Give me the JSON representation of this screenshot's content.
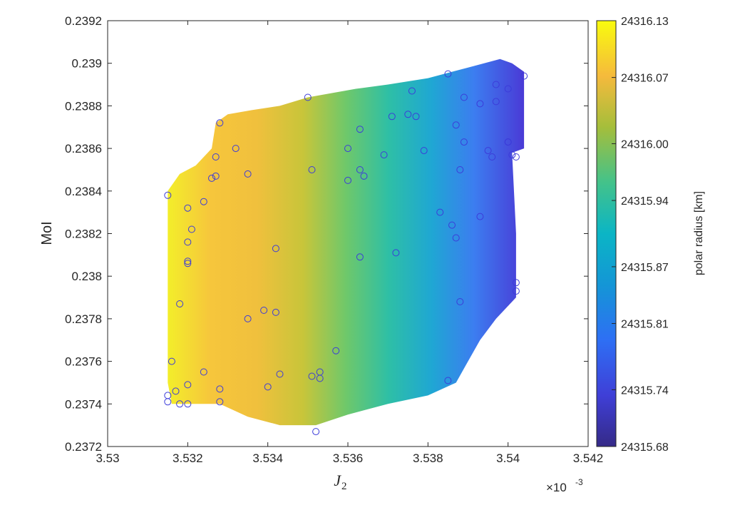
{
  "chart_data": {
    "type": "scatter",
    "xlabel": "J",
    "xlabel_subscript": "2",
    "ylabel": "MoI",
    "x_exponent_label": "×10",
    "x_exponent_power": "-3",
    "x_ticks": [
      "3.53",
      "3.532",
      "3.534",
      "3.536",
      "3.538",
      "3.54",
      "3.542"
    ],
    "x_tick_values": [
      3.53,
      3.532,
      3.534,
      3.536,
      3.538,
      3.54,
      3.542
    ],
    "y_ticks": [
      "0.2372",
      "0.2374",
      "0.2376",
      "0.2378",
      "0.238",
      "0.2382",
      "0.2384",
      "0.2386",
      "0.2388",
      "0.239",
      "0.2392"
    ],
    "y_tick_values": [
      0.2372,
      0.2374,
      0.2376,
      0.2378,
      0.238,
      0.2382,
      0.2384,
      0.2386,
      0.2388,
      0.239,
      0.2392
    ],
    "xlim": [
      3.53,
      3.542
    ],
    "ylim": [
      0.2372,
      0.2392
    ],
    "grid": false,
    "colorbar": {
      "label": "polar radius [km]",
      "min": 24315.68,
      "max": 24316.13,
      "ticks": [
        "24316.13",
        "24316.07",
        "24316.00",
        "24315.94",
        "24315.87",
        "24315.81",
        "24315.74",
        "24315.68"
      ],
      "tick_values": [
        24316.13,
        24316.07,
        24316.0,
        24315.94,
        24315.87,
        24315.81,
        24315.74,
        24315.68
      ],
      "colormap": "parula"
    },
    "marker_color": "#3b3bd9",
    "region_outline": [
      [
        3.5315,
        0.2384
      ],
      [
        3.5318,
        0.23848
      ],
      [
        3.5322,
        0.23852
      ],
      [
        3.5326,
        0.2386
      ],
      [
        3.5327,
        0.23872
      ],
      [
        3.533,
        0.23876
      ],
      [
        3.5336,
        0.23878
      ],
      [
        3.5343,
        0.2388
      ],
      [
        3.535,
        0.23884
      ],
      [
        3.5356,
        0.23886
      ],
      [
        3.5362,
        0.23888
      ],
      [
        3.537,
        0.2389
      ],
      [
        3.538,
        0.23893
      ],
      [
        3.539,
        0.23898
      ],
      [
        3.5398,
        0.23902
      ],
      [
        3.5401,
        0.239
      ],
      [
        3.5404,
        0.23896
      ],
      [
        3.5404,
        0.2386
      ],
      [
        3.5401,
        0.23858
      ],
      [
        3.5402,
        0.2382
      ],
      [
        3.5402,
        0.2379
      ],
      [
        3.5397,
        0.2378
      ],
      [
        3.5393,
        0.2377
      ],
      [
        3.539,
        0.2376
      ],
      [
        3.5387,
        0.2375
      ],
      [
        3.538,
        0.23744
      ],
      [
        3.537,
        0.2374
      ],
      [
        3.536,
        0.23735
      ],
      [
        3.5352,
        0.2373
      ],
      [
        3.5343,
        0.2373
      ],
      [
        3.5335,
        0.23734
      ],
      [
        3.5328,
        0.2374
      ],
      [
        3.5322,
        0.2374
      ],
      [
        3.5316,
        0.2374
      ],
      [
        3.5315,
        0.2375
      ]
    ],
    "points": [
      [
        3.5315,
        0.23838
      ],
      [
        3.532,
        0.23832
      ],
      [
        3.5324,
        0.23835
      ],
      [
        3.5326,
        0.23846
      ],
      [
        3.5327,
        0.23847
      ],
      [
        3.5327,
        0.23856
      ],
      [
        3.5328,
        0.23872
      ],
      [
        3.5332,
        0.2386
      ],
      [
        3.5335,
        0.23848
      ],
      [
        3.535,
        0.23884
      ],
      [
        3.5351,
        0.2385
      ],
      [
        3.536,
        0.2386
      ],
      [
        3.536,
        0.23845
      ],
      [
        3.5363,
        0.2385
      ],
      [
        3.5363,
        0.23869
      ],
      [
        3.5364,
        0.23847
      ],
      [
        3.5369,
        0.23857
      ],
      [
        3.5371,
        0.23875
      ],
      [
        3.5375,
        0.23876
      ],
      [
        3.5376,
        0.23887
      ],
      [
        3.5377,
        0.23875
      ],
      [
        3.5379,
        0.23859
      ],
      [
        3.5385,
        0.23895
      ],
      [
        3.5387,
        0.23871
      ],
      [
        3.5389,
        0.23884
      ],
      [
        3.5389,
        0.23863
      ],
      [
        3.5393,
        0.23881
      ],
      [
        3.5395,
        0.23859
      ],
      [
        3.5396,
        0.23856
      ],
      [
        3.5397,
        0.23882
      ],
      [
        3.5397,
        0.2389
      ],
      [
        3.54,
        0.23888
      ],
      [
        3.54,
        0.23863
      ],
      [
        3.5401,
        0.23857
      ],
      [
        3.5402,
        0.23856
      ],
      [
        3.5404,
        0.23894
      ],
      [
        3.5383,
        0.2383
      ],
      [
        3.5386,
        0.23824
      ],
      [
        3.5387,
        0.23818
      ],
      [
        3.5393,
        0.23828
      ],
      [
        3.5388,
        0.2385
      ],
      [
        3.5372,
        0.23811
      ],
      [
        3.5363,
        0.23809
      ],
      [
        3.5342,
        0.23813
      ],
      [
        3.5321,
        0.23822
      ],
      [
        3.532,
        0.23816
      ],
      [
        3.532,
        0.23807
      ],
      [
        3.532,
        0.23806
      ],
      [
        3.5318,
        0.23787
      ],
      [
        3.5339,
        0.23784
      ],
      [
        3.5342,
        0.23783
      ],
      [
        3.5335,
        0.2378
      ],
      [
        3.5357,
        0.23765
      ],
      [
        3.5316,
        0.2376
      ],
      [
        3.5324,
        0.23755
      ],
      [
        3.532,
        0.23749
      ],
      [
        3.5328,
        0.23747
      ],
      [
        3.534,
        0.23748
      ],
      [
        3.5343,
        0.23754
      ],
      [
        3.5351,
        0.23753
      ],
      [
        3.5353,
        0.23755
      ],
      [
        3.5353,
        0.23752
      ],
      [
        3.5315,
        0.23744
      ],
      [
        3.5315,
        0.23741
      ],
      [
        3.5317,
        0.23746
      ],
      [
        3.5318,
        0.2374
      ],
      [
        3.532,
        0.2374
      ],
      [
        3.5328,
        0.23741
      ],
      [
        3.5352,
        0.23727
      ],
      [
        3.5385,
        0.23751
      ],
      [
        3.5388,
        0.23788
      ],
      [
        3.5402,
        0.23797
      ],
      [
        3.5402,
        0.23793
      ],
      [
        3.54,
        0.23863
      ]
    ]
  }
}
